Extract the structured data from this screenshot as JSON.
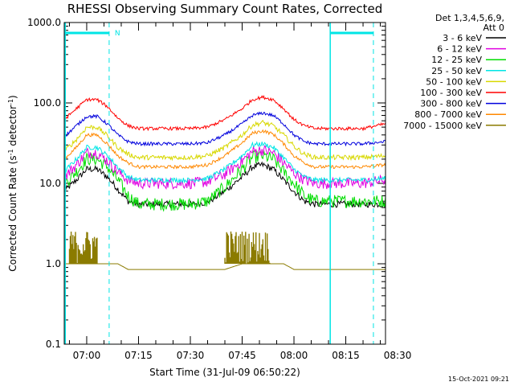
{
  "chart_data": {
    "type": "line",
    "title": "RHESSI Observing Summary Count Rates, Corrected",
    "xlabel": "Start Time (31-Jul-09 06:50:22)",
    "ylabel_parts": [
      "Corrected Count Rate (s",
      "-1",
      " detector",
      "-1",
      ")"
    ],
    "yscale": "log",
    "ylim": [
      0.1,
      1000
    ],
    "xlim_minutes": [
      -6.5,
      86.5
    ],
    "y_ticks": [
      {
        "v": 1000,
        "label": "1000.0"
      },
      {
        "v": 100,
        "label": "100.0"
      },
      {
        "v": 10,
        "label": "10.0"
      },
      {
        "v": 1,
        "label": "1.0"
      },
      {
        "v": 0.1,
        "label": "0.1"
      }
    ],
    "x_ticks": [
      {
        "t": 0,
        "label": "07:00"
      },
      {
        "t": 15,
        "label": "07:15"
      },
      {
        "t": 30,
        "label": "07:30"
      },
      {
        "t": 45,
        "label": "07:45"
      },
      {
        "t": 60,
        "label": "08:00"
      },
      {
        "t": 75,
        "label": "08:15"
      },
      {
        "t": 90,
        "label": "08:30"
      }
    ],
    "legend_header": [
      "Det 1,3,4,5,6,9,",
      "Att 0"
    ],
    "legend_position": "right",
    "x_minutes": [
      -6.5,
      -3,
      0,
      3,
      6,
      9,
      12,
      15,
      20,
      25,
      30,
      35,
      40,
      45,
      48,
      51,
      54,
      57,
      60,
      63,
      66,
      70,
      75,
      80,
      86.5
    ],
    "series": [
      {
        "name": "3 - 6 keV",
        "color": "#000000",
        "noise": 0.04,
        "values": [
          8,
          11,
          15,
          15,
          12,
          8.5,
          6,
          5.5,
          5.5,
          5.5,
          5.5,
          5.8,
          8,
          12,
          16,
          17,
          15,
          11,
          8,
          6,
          5.5,
          5.5,
          5.5,
          5.5,
          5.5
        ]
      },
      {
        "name": "6 - 12 keV",
        "color": "#e000e0",
        "noise": 0.07,
        "values": [
          12,
          17,
          24,
          24,
          19,
          14,
          11,
          10,
          10,
          10,
          10,
          10.5,
          13,
          19,
          25,
          26,
          24,
          18,
          13.5,
          11,
          10,
          10,
          10,
          10,
          11
        ]
      },
      {
        "name": "12 - 25 keV",
        "color": "#00dd00",
        "noise": 0.08,
        "values": [
          10,
          14,
          20,
          20,
          16,
          11,
          7,
          5.5,
          5.5,
          5.5,
          5.5,
          6,
          9,
          15,
          21,
          22,
          20,
          14,
          10,
          7,
          6,
          6,
          6,
          6,
          6
        ]
      },
      {
        "name": "25 - 50 keV",
        "color": "#00e5e5",
        "noise": 0.03,
        "values": [
          14,
          20,
          28,
          28,
          22,
          16,
          12,
          11,
          11,
          11,
          11,
          11.5,
          15,
          22,
          30,
          31,
          28,
          21,
          15,
          12,
          11,
          11,
          11,
          11,
          11.5
        ]
      },
      {
        "name": "50 - 100 keV",
        "color": "#d8d800",
        "noise": 0.03,
        "values": [
          25,
          35,
          50,
          50,
          39,
          28,
          23,
          21,
          21,
          21,
          21,
          22,
          28,
          40,
          53,
          57,
          52,
          40,
          29,
          23,
          21,
          21,
          21,
          21,
          22
        ]
      },
      {
        "name": "100 - 300 keV",
        "color": "#ff0000",
        "noise": 0.02,
        "values": [
          62,
          85,
          110,
          110,
          90,
          65,
          52,
          48,
          48,
          48,
          48,
          50,
          62,
          85,
          110,
          118,
          110,
          85,
          62,
          52,
          48,
          48,
          48,
          48,
          55
        ]
      },
      {
        "name": "300 - 800 keV",
        "color": "#0000dd",
        "noise": 0.02,
        "values": [
          38,
          52,
          68,
          68,
          55,
          40,
          33,
          31,
          31,
          31,
          31,
          32,
          40,
          55,
          70,
          75,
          70,
          55,
          40,
          33,
          31,
          31,
          31,
          31,
          33
        ]
      },
      {
        "name": "800 - 7000 keV",
        "color": "#ff8800",
        "noise": 0.02,
        "values": [
          20,
          28,
          40,
          40,
          31,
          22,
          18,
          16,
          16,
          16,
          16,
          17,
          22,
          32,
          42,
          45,
          41,
          31,
          22,
          18,
          16,
          16,
          16,
          16,
          17
        ]
      },
      {
        "name": "7000 - 15000 keV",
        "color": "#8b7b00",
        "noise": 0,
        "values": [
          1,
          1,
          1,
          1,
          1,
          1,
          0.85,
          0.85,
          0.85,
          0.85,
          0.85,
          0.85,
          0.85,
          1,
          1,
          1,
          1,
          1,
          0.85,
          0.85,
          0.85,
          0.85,
          0.85,
          0.85,
          0.85
        ]
      }
    ],
    "bursts_7000_15000": [
      {
        "from": -5,
        "to": 3,
        "max": 2.6
      },
      {
        "from": 40,
        "to": 53,
        "max": 2.6
      }
    ],
    "flag_label": "N",
    "date_stamp": "15-Oct-2021 09:21"
  }
}
